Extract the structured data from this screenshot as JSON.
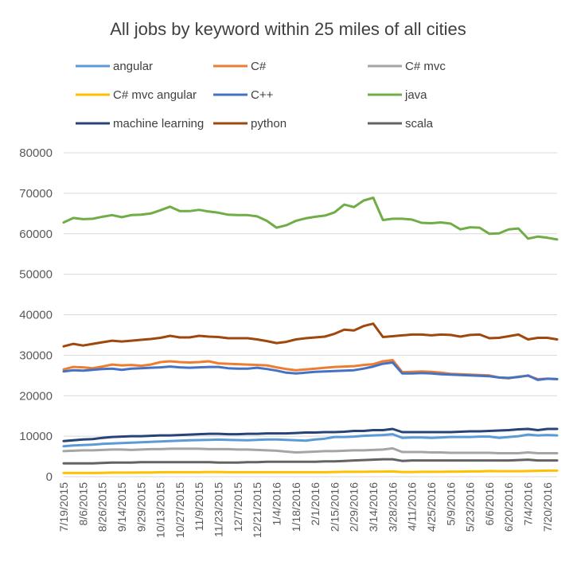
{
  "chart_data": {
    "type": "line",
    "title": "All jobs by keyword within 25 miles of all cities",
    "xlabel": "",
    "ylabel": "",
    "ylim": [
      0,
      80000
    ],
    "yticks": [
      0,
      10000,
      20000,
      30000,
      40000,
      50000,
      60000,
      70000,
      80000
    ],
    "grid": "horizontal",
    "legend_position": "top",
    "x_tick_labels": [
      "7/19/2015",
      "8/6/2015",
      "8/26/2015",
      "9/14/2015",
      "9/29/2015",
      "10/13/2015",
      "10/27/2015",
      "11/9/2015",
      "11/23/2015",
      "12/7/2015",
      "12/21/2015",
      "1/4/2016",
      "1/18/2016",
      "2/1/2016",
      "2/15/2016",
      "2/29/2016",
      "3/14/2016",
      "3/28/2016",
      "4/11/2016",
      "4/25/2016",
      "5/9/2016",
      "5/23/2016",
      "6/6/2016",
      "6/20/2016",
      "7/4/2016",
      "7/20/2016"
    ],
    "x_tick_positions": [
      0,
      2,
      4,
      6,
      8,
      10,
      12,
      14,
      16,
      18,
      20,
      22,
      24,
      26,
      28,
      30,
      32,
      34,
      36,
      38,
      40,
      42,
      44,
      46,
      48,
      50
    ],
    "point_count": 52,
    "series": [
      {
        "name": "angular",
        "color": "#5B9BD5",
        "values": [
          7500,
          7700,
          7800,
          7900,
          8100,
          8200,
          8300,
          8400,
          8500,
          8600,
          8700,
          8800,
          8900,
          9000,
          9050,
          9100,
          9150,
          9100,
          9050,
          9000,
          9100,
          9200,
          9200,
          9100,
          9000,
          8900,
          9200,
          9400,
          9800,
          9800,
          9900,
          10100,
          10200,
          10300,
          10500,
          9600,
          9700,
          9700,
          9600,
          9700,
          9800,
          9800,
          9800,
          9900,
          9900,
          9600,
          9800,
          10000,
          10400,
          10200,
          10300,
          10200
        ]
      },
      {
        "name": "C#",
        "color": "#ED7D31",
        "values": [
          26500,
          27100,
          27000,
          26800,
          27200,
          27700,
          27500,
          27600,
          27400,
          27700,
          28300,
          28500,
          28300,
          28200,
          28300,
          28500,
          28000,
          27900,
          27800,
          27700,
          27600,
          27500,
          27000,
          26600,
          26300,
          26500,
          26700,
          26900,
          27100,
          27200,
          27300,
          27600,
          27800,
          28500,
          28800,
          25800,
          25900,
          26000,
          25900,
          25700,
          25400,
          25300,
          25200,
          25100,
          25000,
          24500,
          24300,
          24700,
          24900,
          24100,
          24200,
          24100
        ]
      },
      {
        "name": "C# mvc",
        "color": "#A5A5A5",
        "values": [
          6300,
          6400,
          6500,
          6500,
          6600,
          6700,
          6700,
          6600,
          6700,
          6800,
          6800,
          6900,
          6900,
          6900,
          6900,
          6800,
          6800,
          6800,
          6700,
          6700,
          6600,
          6500,
          6400,
          6200,
          6000,
          6100,
          6200,
          6300,
          6300,
          6400,
          6500,
          6500,
          6600,
          6700,
          7000,
          6100,
          6100,
          6100,
          6000,
          6000,
          5900,
          5900,
          5900,
          5900,
          5900,
          5800,
          5800,
          5800,
          6000,
          5800,
          5800,
          5800
        ]
      },
      {
        "name": "C# mvc angular",
        "color": "#FFC000",
        "values": [
          900,
          900,
          900,
          900,
          950,
          1000,
          1000,
          1000,
          1050,
          1050,
          1100,
          1100,
          1100,
          1100,
          1100,
          1150,
          1150,
          1100,
          1100,
          1100,
          1100,
          1100,
          1100,
          1100,
          1100,
          1100,
          1100,
          1100,
          1150,
          1200,
          1200,
          1200,
          1250,
          1250,
          1300,
          1150,
          1150,
          1200,
          1200,
          1200,
          1250,
          1250,
          1300,
          1300,
          1400,
          1350,
          1350,
          1350,
          1400,
          1450,
          1500,
          1500
        ]
      },
      {
        "name": "C++",
        "color": "#4472C4",
        "values": [
          26000,
          26300,
          26200,
          26400,
          26600,
          26700,
          26400,
          26700,
          26800,
          26900,
          27000,
          27200,
          27000,
          26900,
          27000,
          27100,
          27100,
          26800,
          26700,
          26700,
          26900,
          26600,
          26200,
          25700,
          25500,
          25700,
          25900,
          26000,
          26100,
          26200,
          26300,
          26700,
          27200,
          27900,
          28200,
          25500,
          25500,
          25600,
          25500,
          25300,
          25200,
          25100,
          25000,
          24900,
          24800,
          24500,
          24400,
          24600,
          25000,
          23900,
          24200,
          24100
        ]
      },
      {
        "name": "java",
        "color": "#70AD47",
        "values": [
          62800,
          63900,
          63600,
          63700,
          64200,
          64600,
          64100,
          64600,
          64700,
          65000,
          65800,
          66700,
          65600,
          65600,
          65900,
          65500,
          65200,
          64700,
          64600,
          64600,
          64300,
          63200,
          61500,
          62100,
          63200,
          63800,
          64200,
          64500,
          65300,
          67200,
          66600,
          68200,
          68900,
          63400,
          63700,
          63700,
          63500,
          62700,
          62600,
          62800,
          62500,
          61100,
          61600,
          61500,
          60000,
          60100,
          61100,
          61300,
          58800,
          59300,
          59000,
          58600
        ]
      },
      {
        "name": "machine learning",
        "color": "#264478",
        "values": [
          8800,
          9000,
          9200,
          9300,
          9600,
          9800,
          9900,
          10000,
          10000,
          10100,
          10200,
          10200,
          10300,
          10400,
          10500,
          10600,
          10600,
          10500,
          10500,
          10600,
          10600,
          10700,
          10700,
          10700,
          10800,
          10900,
          10900,
          11000,
          11000,
          11100,
          11300,
          11300,
          11500,
          11500,
          11800,
          11000,
          11000,
          11000,
          11000,
          11000,
          11000,
          11100,
          11200,
          11200,
          11300,
          11400,
          11500,
          11700,
          11800,
          11500,
          11800,
          11800
        ]
      },
      {
        "name": "python",
        "color": "#9E480E",
        "values": [
          32200,
          32800,
          32400,
          32800,
          33200,
          33600,
          33400,
          33600,
          33800,
          34000,
          34300,
          34800,
          34400,
          34400,
          34800,
          34600,
          34500,
          34200,
          34200,
          34200,
          33900,
          33500,
          33000,
          33300,
          33900,
          34200,
          34400,
          34600,
          35300,
          36300,
          36100,
          37200,
          37800,
          34500,
          34700,
          34900,
          35100,
          35100,
          34900,
          35100,
          35000,
          34600,
          35000,
          35100,
          34200,
          34300,
          34700,
          35100,
          33900,
          34300,
          34300,
          33900
        ]
      },
      {
        "name": "scala",
        "color": "#636363",
        "values": [
          3300,
          3300,
          3300,
          3300,
          3400,
          3500,
          3500,
          3500,
          3600,
          3600,
          3600,
          3600,
          3600,
          3600,
          3600,
          3600,
          3500,
          3500,
          3500,
          3600,
          3600,
          3700,
          3700,
          3700,
          3700,
          3700,
          3700,
          3800,
          3800,
          3900,
          4000,
          4100,
          4200,
          4300,
          4300,
          3900,
          4000,
          4000,
          4000,
          4000,
          4000,
          4000,
          4000,
          4000,
          4000,
          4000,
          4000,
          4100,
          4200,
          4000,
          4000,
          4000
        ]
      }
    ],
    "colors": {
      "grid": "#D9D9D9",
      "text": "#595959",
      "title": "#404040"
    }
  }
}
